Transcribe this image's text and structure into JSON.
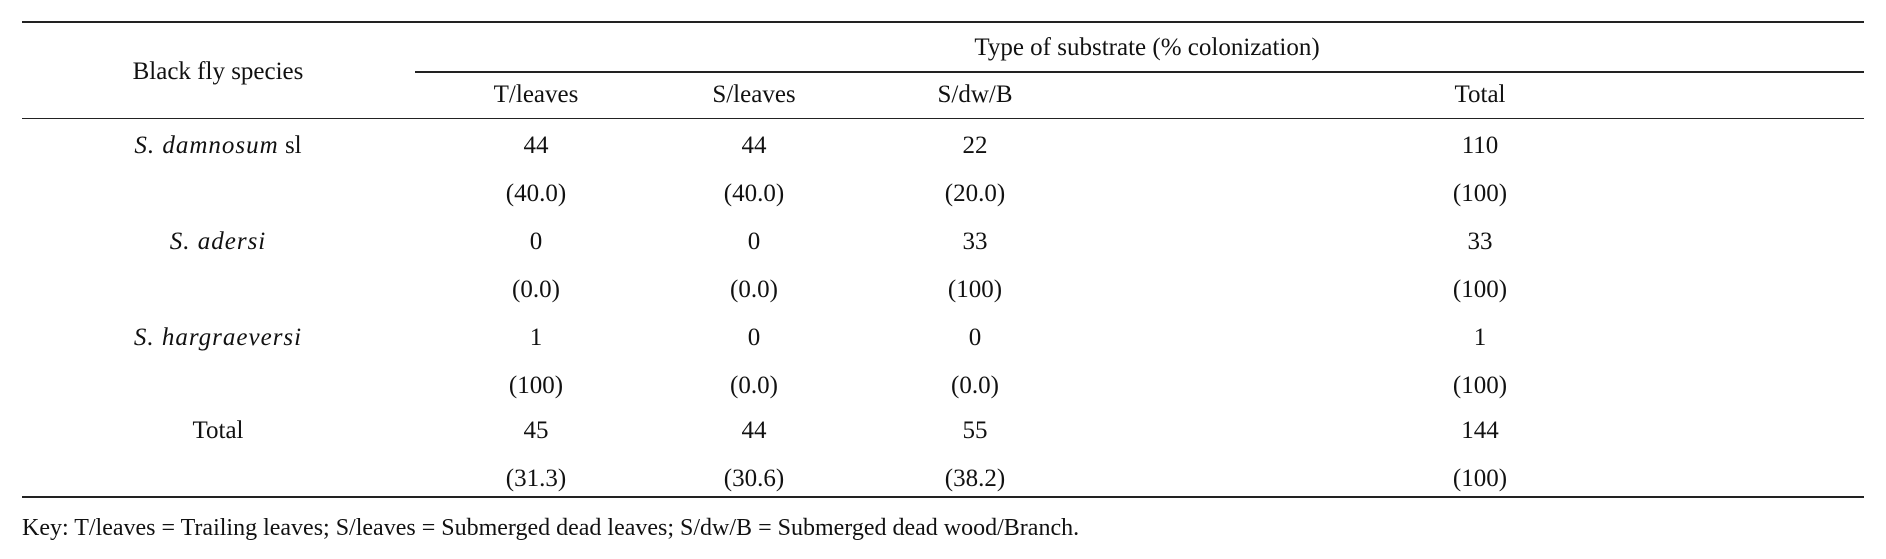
{
  "table": {
    "header": {
      "species_col": "Black fly species",
      "group": "Type of substrate (% colonization)",
      "columns": [
        "T/leaves",
        "S/leaves",
        "S/dw/B",
        "Total"
      ]
    },
    "rows": [
      {
        "species_italic": "S. damnosum",
        "species_suffix": " sl",
        "counts": [
          "44",
          "44",
          "22",
          "110"
        ],
        "percents": [
          "(40.0)",
          "(40.0)",
          "(20.0)",
          "(100)"
        ]
      },
      {
        "species_italic": "S. adersi",
        "species_suffix": "",
        "counts": [
          "0",
          "0",
          "33",
          "33"
        ],
        "percents": [
          "(0.0)",
          "(0.0)",
          "(100)",
          "(100)"
        ]
      },
      {
        "species_italic": "S. hargraeversi",
        "species_suffix": "",
        "counts": [
          "1",
          "0",
          "0",
          "1"
        ],
        "percents": [
          "(100)",
          "(0.0)",
          "(0.0)",
          "(100)"
        ]
      }
    ],
    "total": {
      "label": "Total",
      "counts": [
        "45",
        "44",
        "55",
        "144"
      ],
      "percents": [
        "(31.3)",
        "(30.6)",
        "(38.2)",
        "(100)"
      ]
    }
  },
  "key_note": "Key: T/leaves = Trailing leaves; S/leaves = Submerged dead leaves; S/dw/B = Submerged dead wood/Branch."
}
